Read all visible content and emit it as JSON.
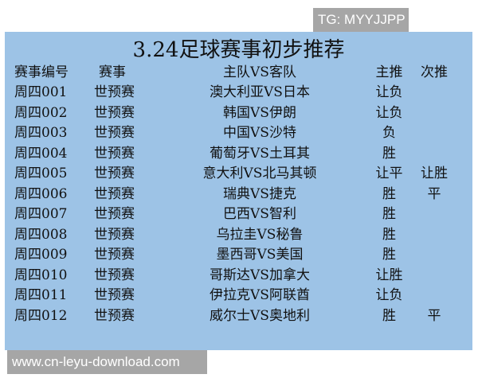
{
  "watermark_top": "TG: MYYJJPP",
  "title": "3.24足球赛事初步推荐",
  "headers": [
    "赛事编号",
    "赛事",
    "主队VS客队",
    "主推",
    "次推"
  ],
  "rows": [
    [
      "周四001",
      "世预赛",
      "澳大利亚VS日本",
      "让负",
      ""
    ],
    [
      "周四002",
      "世预赛",
      "韩国VS伊朗",
      "让负",
      ""
    ],
    [
      "周四003",
      "世预赛",
      "中国VS沙特",
      "负",
      ""
    ],
    [
      "周四004",
      "世预赛",
      "葡萄牙VS土耳其",
      "胜",
      ""
    ],
    [
      "周四005",
      "世预赛",
      "意大利VS北马其顿",
      "让平",
      "让胜"
    ],
    [
      "周四006",
      "世预赛",
      "瑞典VS捷克",
      "胜",
      "平"
    ],
    [
      "周四007",
      "世预赛",
      "巴西VS智利",
      "胜",
      ""
    ],
    [
      "周四008",
      "世预赛",
      "乌拉圭VS秘鲁",
      "胜",
      ""
    ],
    [
      "周四009",
      "世预赛",
      "墨西哥VS美国",
      "胜",
      ""
    ],
    [
      "周四010",
      "世预赛",
      "哥斯达VS加拿大",
      "让胜",
      ""
    ],
    [
      "周四011",
      "世预赛",
      "伊拉克VS阿联酋",
      "让负",
      ""
    ],
    [
      "周四012",
      "世预赛",
      "威尔士VS奥地利",
      "胜",
      "平"
    ]
  ],
  "watermark_bottom": "www.cn-leyu-download.com",
  "colors": {
    "panel": "#9dc3e6",
    "watermark_bg": "#a6a6a6"
  }
}
